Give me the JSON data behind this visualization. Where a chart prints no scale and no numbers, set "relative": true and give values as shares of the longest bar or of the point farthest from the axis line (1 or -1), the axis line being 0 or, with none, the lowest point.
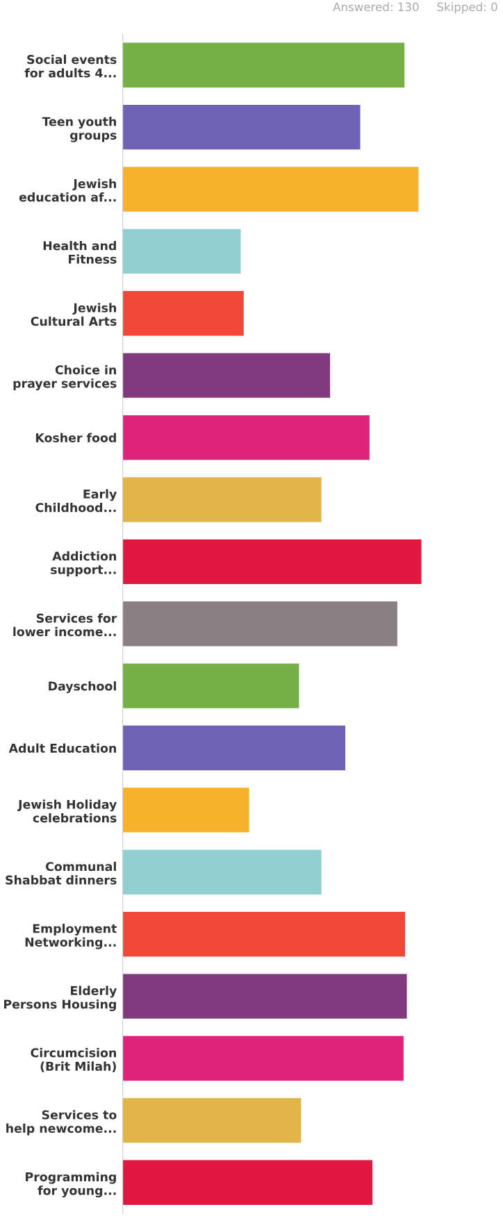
{
  "chart_data": {
    "type": "bar",
    "orientation": "horizontal",
    "relative": true,
    "tick_labels": "y",
    "categories": [
      "Social events\nfor adults 4...",
      "Teen youth\ngroups",
      "Jewish\neducation af...",
      "Health and\nFitness",
      "Jewish\nCultural Arts",
      "Choice in\nprayer services",
      "Kosher food",
      "Early\nChildhood...",
      "Addiction\nsupport...",
      "Services for\nlower income...",
      "Dayschool",
      "Adult Education",
      "Jewish Holiday\ncelebrations",
      "Communal\nShabbat dinners",
      "Employment\nNetworking...",
      "Elderly\nPersons Housing",
      "Circumcision\n(Brit Milah)",
      "Services to\nhelp newcome...",
      "Programming\nfor young..."
    ],
    "values": [
      0.943,
      0.795,
      0.99,
      0.395,
      0.405,
      0.694,
      0.826,
      0.665,
      1,
      0.919,
      0.59,
      0.745,
      0.423,
      0.665,
      0.945,
      0.951,
      0.94,
      0.597,
      0.836
    ],
    "colors": [
      "#74b043",
      "#6d63b5",
      "#f5b22a",
      "#92cfd0",
      "#f0493a",
      "#823a7f",
      "#e0237a",
      "#e2b54a",
      "#e0173f",
      "#8a8083",
      "#74b043",
      "#6d63b5",
      "#f5b22a",
      "#92cfd0",
      "#f0493a",
      "#823a7f",
      "#e0237a",
      "#e2b54a",
      "#e0173f"
    ],
    "annotations": [
      "Answered: 130",
      "Skipped: 0"
    ]
  }
}
